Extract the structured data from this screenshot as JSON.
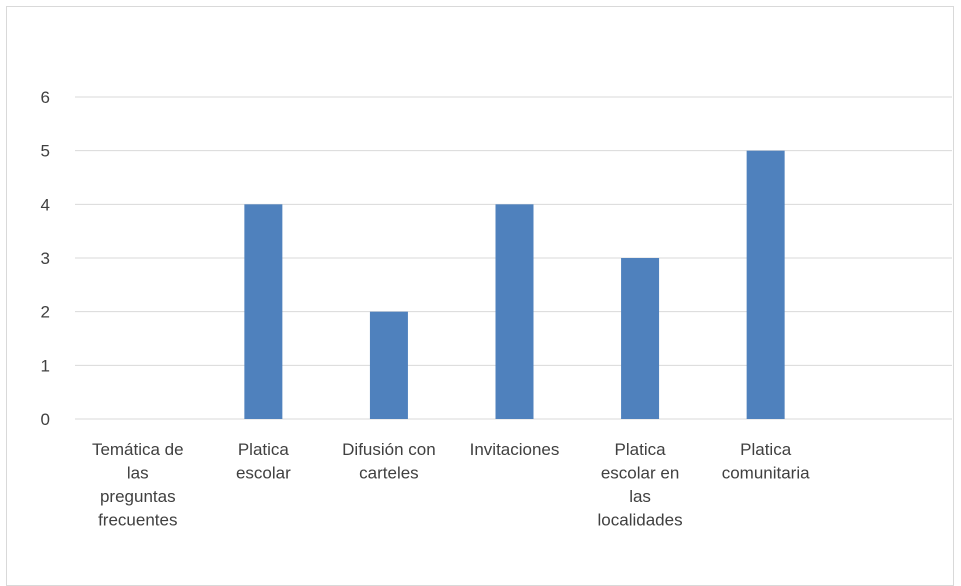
{
  "chart_data": {
    "type": "bar",
    "title": "",
    "xlabel": "",
    "ylabel": "",
    "categories": [
      "Temática de las preguntas frecuentes",
      "Platica escolar",
      "Difusión con carteles",
      "Invitaciones",
      "Platica escolar en las localidades",
      "Platica comunitaria"
    ],
    "category_label_lines": [
      [
        "Temática de",
        "las",
        "preguntas",
        "frecuentes"
      ],
      [
        "Platica",
        "escolar"
      ],
      [
        "Difusión con",
        "carteles"
      ],
      [
        "Invitaciones"
      ],
      [
        "Platica",
        "escolar en",
        "las",
        "localidades"
      ],
      [
        "Platica",
        "comunitaria"
      ]
    ],
    "values": [
      null,
      4,
      2,
      4,
      3,
      5
    ],
    "ylim": [
      0,
      6
    ],
    "yticks": [
      0,
      1,
      2,
      3,
      4,
      5,
      6
    ],
    "grid": true,
    "legend": "none",
    "bar_color": "#4f81bd",
    "grid_color": "#d9d9d9"
  }
}
